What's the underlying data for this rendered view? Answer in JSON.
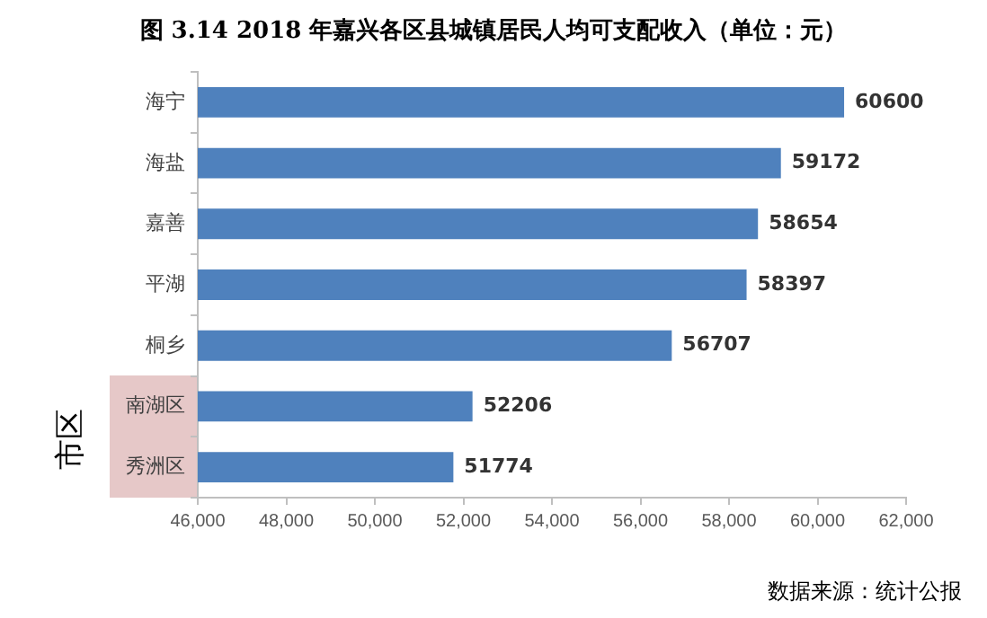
{
  "chart_data": {
    "type": "bar",
    "orientation": "horizontal",
    "title": "图 3.14  2018 年嘉兴各区县城镇居民人均可支配收入（单位：元）",
    "categories": [
      "海宁",
      "海盐",
      "嘉善",
      "平湖",
      "桐乡",
      "南湖区",
      "秀洲区"
    ],
    "values": [
      60600,
      59172,
      58654,
      58397,
      56707,
      52206,
      51774
    ],
    "color": "#4f81bd",
    "xlim": [
      46000,
      62000
    ],
    "xticks": [
      {
        "value": 46000,
        "label": "46,000"
      },
      {
        "value": 48000,
        "label": "48,000"
      },
      {
        "value": 50000,
        "label": "50,000"
      },
      {
        "value": 52000,
        "label": "52,000"
      },
      {
        "value": 54000,
        "label": "54,000"
      },
      {
        "value": 56000,
        "label": "56,000"
      },
      {
        "value": 58000,
        "label": "58,000"
      },
      {
        "value": 60000,
        "label": "60,000"
      },
      {
        "value": 62000,
        "label": "62,000"
      }
    ],
    "data_labels": true,
    "annotations": [
      "市区",
      "数据来源：统计公报"
    ]
  }
}
